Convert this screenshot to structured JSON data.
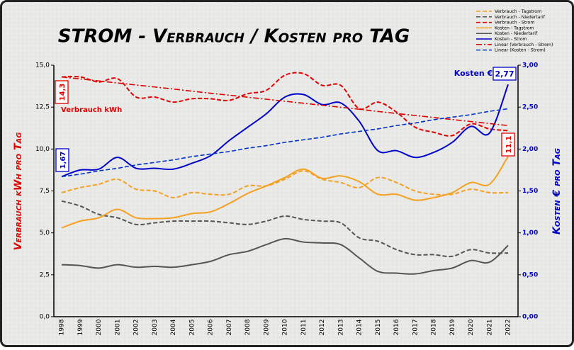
{
  "chart_data": {
    "type": "line",
    "title": "STROM - Verbrauch / Kosten pro TAG",
    "y_label": "Verbrauch kWh pro Tag",
    "y2_label": "Kosten € pro Tag",
    "categories": [
      "1998",
      "1999",
      "2000",
      "2001",
      "2002",
      "2003",
      "2004",
      "2005",
      "2006",
      "2007",
      "2008",
      "2009",
      "2010",
      "2011",
      "2012",
      "2013",
      "2014",
      "2015",
      "2016",
      "2017",
      "2018",
      "2019",
      "2020",
      "2021",
      "2022"
    ],
    "ylim": [
      0,
      15
    ],
    "yticks": [
      {
        "value": 0,
        "label": "0,0"
      },
      {
        "value": 2.5,
        "label": "2,5"
      },
      {
        "value": 5,
        "label": "5,0"
      },
      {
        "value": 7.5,
        "label": "7,5"
      },
      {
        "value": 10,
        "label": "10,0"
      },
      {
        "value": 12.5,
        "label": "12,5"
      },
      {
        "value": 15,
        "label": "15,0"
      }
    ],
    "y2lim": [
      0,
      3
    ],
    "y2ticks": [
      {
        "value": 0,
        "label": "0,00"
      },
      {
        "value": 0.5,
        "label": "0,50"
      },
      {
        "value": 1,
        "label": "1,00"
      },
      {
        "value": 1.5,
        "label": "1,50"
      },
      {
        "value": 2,
        "label": "2,00"
      },
      {
        "value": 2.5,
        "label": "2,50"
      },
      {
        "value": 3,
        "label": "3,00"
      }
    ],
    "series": [
      {
        "name": "Verbrauch - Tagstrom",
        "color": "#f5a020",
        "style": "dashed",
        "axis": "y",
        "values": [
          7.4,
          7.7,
          7.9,
          8.2,
          7.6,
          7.5,
          7.1,
          7.4,
          7.3,
          7.3,
          7.8,
          7.8,
          8.2,
          8.7,
          8.2,
          8.0,
          7.7,
          8.3,
          8.0,
          7.5,
          7.3,
          7.3,
          7.6,
          7.4,
          7.4
        ]
      },
      {
        "name": "Verbrauch - Niedertarif",
        "color": "#555555",
        "style": "dashed",
        "axis": "y",
        "values": [
          6.9,
          6.6,
          6.1,
          5.9,
          5.5,
          5.6,
          5.7,
          5.7,
          5.7,
          5.6,
          5.5,
          5.7,
          6.0,
          5.8,
          5.7,
          5.6,
          4.7,
          4.5,
          4.0,
          3.7,
          3.7,
          3.6,
          4.0,
          3.8,
          3.8
        ]
      },
      {
        "name": "Verbrauch - Strom",
        "color": "#e00000",
        "style": "dashed",
        "axis": "y",
        "values": [
          14.3,
          14.3,
          14.0,
          14.2,
          13.1,
          13.1,
          12.8,
          13.0,
          13.0,
          12.9,
          13.3,
          13.5,
          14.4,
          14.5,
          13.8,
          13.8,
          12.4,
          12.8,
          12.2,
          11.3,
          11.0,
          10.8,
          11.5,
          11.2,
          11.1
        ]
      },
      {
        "name": "Kosten - Tagstrom",
        "color": "#f5a020",
        "style": "solid",
        "axis": "y2",
        "values": [
          1.06,
          1.14,
          1.18,
          1.28,
          1.18,
          1.17,
          1.18,
          1.23,
          1.25,
          1.35,
          1.47,
          1.56,
          1.66,
          1.76,
          1.65,
          1.68,
          1.61,
          1.46,
          1.46,
          1.39,
          1.42,
          1.48,
          1.6,
          1.58,
          1.91
        ]
      },
      {
        "name": "Kosten - Niedertarif",
        "color": "#555555",
        "style": "solid",
        "axis": "y2",
        "values": [
          0.62,
          0.61,
          0.58,
          0.62,
          0.59,
          0.6,
          0.59,
          0.62,
          0.66,
          0.74,
          0.78,
          0.86,
          0.93,
          0.89,
          0.88,
          0.86,
          0.7,
          0.54,
          0.52,
          0.51,
          0.55,
          0.58,
          0.67,
          0.65,
          0.85
        ]
      },
      {
        "name": "Kosten - Strom",
        "color": "#0000cc",
        "style": "solid",
        "axis": "y2",
        "values": [
          1.67,
          1.75,
          1.76,
          1.9,
          1.77,
          1.77,
          1.76,
          1.83,
          1.92,
          2.1,
          2.26,
          2.42,
          2.62,
          2.65,
          2.53,
          2.55,
          2.33,
          1.98,
          1.98,
          1.9,
          1.96,
          2.08,
          2.27,
          2.19,
          2.77
        ]
      },
      {
        "name": "Linear (Verbrauch - Strom)",
        "color": "#e00000",
        "style": "dashdot",
        "axis": "y",
        "values": [
          14.3,
          14.18,
          14.06,
          13.94,
          13.82,
          13.7,
          13.58,
          13.45,
          13.33,
          13.21,
          13.09,
          12.97,
          12.85,
          12.73,
          12.61,
          12.49,
          12.37,
          12.24,
          12.12,
          12.0,
          11.88,
          11.76,
          11.64,
          11.52,
          11.4
        ]
      },
      {
        "name": "Linear (Kosten - Strom)",
        "color": "#0033cc",
        "style": "dashed",
        "axis": "y2",
        "values": [
          1.67,
          1.7,
          1.74,
          1.77,
          1.81,
          1.84,
          1.87,
          1.91,
          1.94,
          1.97,
          2.01,
          2.04,
          2.08,
          2.11,
          2.14,
          2.18,
          2.21,
          2.24,
          2.28,
          2.31,
          2.35,
          2.38,
          2.41,
          2.45,
          2.48
        ]
      }
    ],
    "annotations": [
      {
        "text": "Verbrauch kWh",
        "color": "#e00000"
      },
      {
        "text": "Kosten €",
        "color": "#0000cc"
      },
      {
        "text": "14,3",
        "color": "#e00000",
        "boxed": true,
        "rotated": true
      },
      {
        "text": "11,1",
        "color": "#e00000",
        "boxed": true,
        "rotated": true
      },
      {
        "text": "1,67",
        "color": "#0000cc",
        "boxed": true,
        "rotated": true
      },
      {
        "text": "2,77",
        "color": "#0000cc",
        "boxed": true,
        "rotated": false
      }
    ],
    "grid": false
  }
}
